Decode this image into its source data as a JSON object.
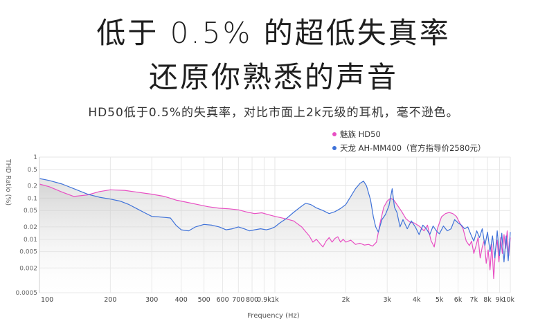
{
  "headline": {
    "line1": "低于 0.5% 的超低失真率",
    "line2": "还原你熟悉的声音"
  },
  "subtitle": "HD50低于0.5%的失真率，对比市面上2k元级的耳机，毫不逊色。",
  "legend": {
    "items": [
      {
        "label": "魅族 HD50",
        "color": "#e84fc3"
      },
      {
        "label": "天龙 AH-MM400（官方指导价2580元）",
        "color": "#3f72d9"
      }
    ]
  },
  "chart_data": {
    "type": "line",
    "title": "",
    "xlabel": "Frequency (Hz)",
    "ylabel": "THD Ratio (%)",
    "x_scale": "log",
    "y_scale": "log",
    "xlim": [
      100,
      10000
    ],
    "ylim": [
      0.0005,
      1
    ],
    "grid": true,
    "legend_position": "top-right",
    "x_ticks": [
      {
        "value": 100,
        "label": "100"
      },
      {
        "value": 200,
        "label": "200"
      },
      {
        "value": 300,
        "label": "300"
      },
      {
        "value": 400,
        "label": "400"
      },
      {
        "value": 500,
        "label": "500"
      },
      {
        "value": 600,
        "label": "600"
      },
      {
        "value": 700,
        "label": "700"
      },
      {
        "value": 800,
        "label": "800"
      },
      {
        "value": 900,
        "label": "0.9k"
      },
      {
        "value": 1000,
        "label": "1k"
      },
      {
        "value": 2000,
        "label": "2k"
      },
      {
        "value": 3000,
        "label": "3k"
      },
      {
        "value": 4000,
        "label": "4k"
      },
      {
        "value": 5000,
        "label": "5k"
      },
      {
        "value": 6000,
        "label": "6k"
      },
      {
        "value": 7000,
        "label": "7k"
      },
      {
        "value": 8000,
        "label": "8k"
      },
      {
        "value": 9000,
        "label": "9k"
      },
      {
        "value": 10000,
        "label": "10k"
      }
    ],
    "y_ticks": [
      {
        "value": 1,
        "label": "1"
      },
      {
        "value": 0.5,
        "label": "0.5"
      },
      {
        "value": 0.2,
        "label": "0.2"
      },
      {
        "value": 0.1,
        "label": "0.1"
      },
      {
        "value": 0.05,
        "label": "0.05"
      },
      {
        "value": 0.02,
        "label": "0.02"
      },
      {
        "value": 0.01,
        "label": "0.01"
      },
      {
        "value": 0.005,
        "label": "0.005"
      },
      {
        "value": 0.002,
        "label": "0.002"
      },
      {
        "value": 0.0005,
        "label": "0.0005"
      }
    ],
    "series": [
      {
        "name": "魅族 HD50",
        "color": "#e84fc3",
        "points": [
          [
            100,
            0.22
          ],
          [
            110,
            0.19
          ],
          [
            125,
            0.14
          ],
          [
            140,
            0.11
          ],
          [
            160,
            0.12
          ],
          [
            180,
            0.145
          ],
          [
            200,
            0.16
          ],
          [
            230,
            0.155
          ],
          [
            260,
            0.14
          ],
          [
            300,
            0.125
          ],
          [
            340,
            0.11
          ],
          [
            380,
            0.09
          ],
          [
            420,
            0.08
          ],
          [
            470,
            0.07
          ],
          [
            520,
            0.062
          ],
          [
            580,
            0.057
          ],
          [
            640,
            0.055
          ],
          [
            700,
            0.052
          ],
          [
            760,
            0.046
          ],
          [
            820,
            0.042
          ],
          [
            880,
            0.044
          ],
          [
            950,
            0.039
          ],
          [
            1000,
            0.036
          ],
          [
            1100,
            0.032
          ],
          [
            1200,
            0.028
          ],
          [
            1300,
            0.02
          ],
          [
            1400,
            0.012
          ],
          [
            1450,
            0.0085
          ],
          [
            1500,
            0.01
          ],
          [
            1550,
            0.008
          ],
          [
            1600,
            0.0065
          ],
          [
            1650,
            0.009
          ],
          [
            1700,
            0.011
          ],
          [
            1750,
            0.0085
          ],
          [
            1800,
            0.0105
          ],
          [
            1850,
            0.0115
          ],
          [
            1900,
            0.0085
          ],
          [
            1950,
            0.01
          ],
          [
            2000,
            0.0085
          ],
          [
            2100,
            0.0095
          ],
          [
            2200,
            0.0075
          ],
          [
            2300,
            0.008
          ],
          [
            2400,
            0.0072
          ],
          [
            2500,
            0.0075
          ],
          [
            2600,
            0.0068
          ],
          [
            2700,
            0.0085
          ],
          [
            2800,
            0.025
          ],
          [
            2900,
            0.06
          ],
          [
            3000,
            0.085
          ],
          [
            3100,
            0.1
          ],
          [
            3200,
            0.09
          ],
          [
            3300,
            0.07
          ],
          [
            3450,
            0.048
          ],
          [
            3600,
            0.032
          ],
          [
            3750,
            0.026
          ],
          [
            3900,
            0.025
          ],
          [
            4100,
            0.021
          ],
          [
            4300,
            0.016
          ],
          [
            4450,
            0.022
          ],
          [
            4600,
            0.0095
          ],
          [
            4750,
            0.0065
          ],
          [
            4900,
            0.018
          ],
          [
            5100,
            0.035
          ],
          [
            5300,
            0.042
          ],
          [
            5500,
            0.045
          ],
          [
            5700,
            0.042
          ],
          [
            5900,
            0.036
          ],
          [
            6100,
            0.025
          ],
          [
            6300,
            0.018
          ],
          [
            6500,
            0.009
          ],
          [
            6700,
            0.007
          ],
          [
            6850,
            0.009
          ],
          [
            7000,
            0.0045
          ],
          [
            7150,
            0.007
          ],
          [
            7300,
            0.011
          ],
          [
            7450,
            0.0035
          ],
          [
            7600,
            0.0065
          ],
          [
            7750,
            0.0095
          ],
          [
            7900,
            0.0026
          ],
          [
            8050,
            0.0055
          ],
          [
            8200,
            0.0018
          ],
          [
            8350,
            0.0075
          ],
          [
            8500,
            0.0011
          ],
          [
            8650,
            0.0055
          ],
          [
            8800,
            0.0095
          ],
          [
            8950,
            0.0028
          ],
          [
            9100,
            0.011
          ],
          [
            9250,
            0.0045
          ],
          [
            9400,
            0.013
          ],
          [
            9550,
            0.006
          ],
          [
            9700,
            0.016
          ],
          [
            9850,
            0.004
          ],
          [
            10000,
            0.011
          ]
        ]
      },
      {
        "name": "天龙 AH-MM400（官方指导价2580元）",
        "color": "#3f72d9",
        "points": [
          [
            100,
            0.3
          ],
          [
            110,
            0.27
          ],
          [
            125,
            0.22
          ],
          [
            140,
            0.17
          ],
          [
            160,
            0.125
          ],
          [
            180,
            0.105
          ],
          [
            200,
            0.095
          ],
          [
            220,
            0.085
          ],
          [
            240,
            0.07
          ],
          [
            260,
            0.055
          ],
          [
            280,
            0.044
          ],
          [
            300,
            0.036
          ],
          [
            320,
            0.035
          ],
          [
            340,
            0.034
          ],
          [
            360,
            0.033
          ],
          [
            380,
            0.022
          ],
          [
            400,
            0.017
          ],
          [
            430,
            0.016
          ],
          [
            460,
            0.02
          ],
          [
            500,
            0.023
          ],
          [
            540,
            0.022
          ],
          [
            580,
            0.02
          ],
          [
            620,
            0.017
          ],
          [
            660,
            0.018
          ],
          [
            700,
            0.02
          ],
          [
            740,
            0.018
          ],
          [
            780,
            0.016
          ],
          [
            820,
            0.017
          ],
          [
            870,
            0.018
          ],
          [
            920,
            0.017
          ],
          [
            960,
            0.018
          ],
          [
            1000,
            0.02
          ],
          [
            1050,
            0.025
          ],
          [
            1120,
            0.032
          ],
          [
            1200,
            0.045
          ],
          [
            1280,
            0.06
          ],
          [
            1350,
            0.075
          ],
          [
            1420,
            0.07
          ],
          [
            1500,
            0.058
          ],
          [
            1600,
            0.05
          ],
          [
            1700,
            0.042
          ],
          [
            1800,
            0.047
          ],
          [
            1900,
            0.056
          ],
          [
            2000,
            0.07
          ],
          [
            2100,
            0.11
          ],
          [
            2200,
            0.17
          ],
          [
            2300,
            0.23
          ],
          [
            2380,
            0.26
          ],
          [
            2450,
            0.2
          ],
          [
            2550,
            0.09
          ],
          [
            2620,
            0.035
          ],
          [
            2680,
            0.02
          ],
          [
            2750,
            0.015
          ],
          [
            2850,
            0.03
          ],
          [
            2950,
            0.04
          ],
          [
            3050,
            0.065
          ],
          [
            3150,
            0.17
          ],
          [
            3220,
            0.06
          ],
          [
            3300,
            0.045
          ],
          [
            3400,
            0.02
          ],
          [
            3500,
            0.03
          ],
          [
            3650,
            0.018
          ],
          [
            3800,
            0.028
          ],
          [
            3950,
            0.02
          ],
          [
            4100,
            0.013
          ],
          [
            4250,
            0.022
          ],
          [
            4400,
            0.018
          ],
          [
            4550,
            0.013
          ],
          [
            4700,
            0.021
          ],
          [
            4850,
            0.016
          ],
          [
            5000,
            0.0135
          ],
          [
            5200,
            0.021
          ],
          [
            5400,
            0.016
          ],
          [
            5600,
            0.018
          ],
          [
            5800,
            0.03
          ],
          [
            6000,
            0.025
          ],
          [
            6200,
            0.022
          ],
          [
            6400,
            0.018
          ],
          [
            6600,
            0.02
          ],
          [
            6800,
            0.013
          ],
          [
            7000,
            0.009
          ],
          [
            7200,
            0.016
          ],
          [
            7400,
            0.011
          ],
          [
            7600,
            0.018
          ],
          [
            7800,
            0.007
          ],
          [
            8000,
            0.015
          ],
          [
            8200,
            0.005
          ],
          [
            8400,
            0.012
          ],
          [
            8600,
            0.0035
          ],
          [
            8800,
            0.016
          ],
          [
            9000,
            0.004
          ],
          [
            9200,
            0.014
          ],
          [
            9400,
            0.0028
          ],
          [
            9600,
            0.012
          ],
          [
            9800,
            0.003
          ],
          [
            10000,
            0.015
          ]
        ]
      }
    ]
  }
}
